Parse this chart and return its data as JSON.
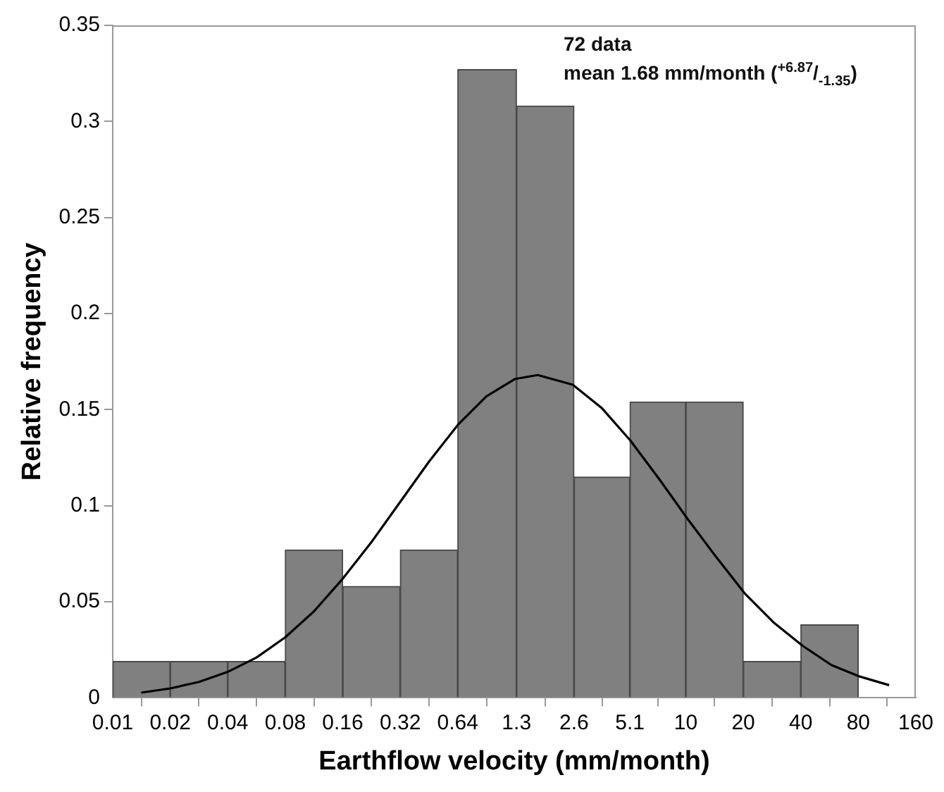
{
  "chart_data": {
    "type": "histogram",
    "xlabel": "Earthflow velocity (mm/month)",
    "ylabel": "Relative frequency",
    "annotations": [
      "72 data",
      "mean 1.68 mm/month ($^{+6.87}$/$_{-1.35}$)"
    ],
    "bins": [
      0.01,
      0.02,
      0.04,
      0.08,
      0.16,
      0.32,
      0.64,
      1.3,
      2.6,
      5.1,
      10,
      20,
      40,
      80,
      160
    ],
    "series": [
      {
        "values": [
          0.019,
          0.019,
          0.019,
          0.077,
          0.058,
          0.077,
          0.327,
          0.308,
          0.115,
          0.154,
          0.154,
          0.019,
          0.038,
          0
        ],
        "color": "#808080"
      },
      {
        "type": "line",
        "color": "#000000",
        "x": [
          0.0141,
          0.02,
          0.0283,
          0.04,
          0.0566,
          0.08,
          0.113,
          0.16,
          0.226,
          0.32,
          0.453,
          0.64,
          0.905,
          1.28,
          1.68,
          2.56,
          3.62,
          5.12,
          7.24,
          10.24,
          14.5,
          20.5,
          29,
          41,
          58,
          82,
          116
        ],
        "values": [
          0.0027,
          0.0049,
          0.0083,
          0.0135,
          0.021,
          0.0315,
          0.045,
          0.062,
          0.081,
          0.102,
          0.123,
          0.142,
          0.157,
          0.166,
          0.168,
          0.163,
          0.151,
          0.134,
          0.114,
          0.093,
          0.073,
          0.054,
          0.039,
          0.027,
          0.017,
          0.011,
          0.0066
        ]
      }
    ],
    "xlim": [
      0.01,
      160
    ],
    "xticks": [
      0.01,
      0.02,
      0.04,
      0.08,
      0.16,
      0.32,
      0.64,
      1.3,
      2.6,
      5.1,
      10,
      20,
      40,
      80,
      160
    ],
    "ylim": [
      0,
      0.35
    ],
    "yticks": [
      0,
      0.05,
      0.1,
      0.15,
      0.2,
      0.25,
      0.3,
      0.35
    ],
    "log": "x",
    "grid": false,
    "legend": false,
    "marker": "none"
  }
}
